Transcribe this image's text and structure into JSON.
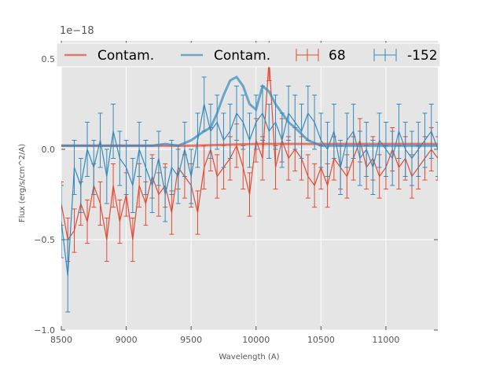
{
  "chart_data": {
    "type": "line",
    "title": "",
    "xlabel": "Wavelength (A)",
    "ylabel": "Flux (erg/s/cm^2/A)",
    "y_offset_label": "1e−18",
    "xlim": [
      8500,
      11400
    ],
    "ylim": [
      -1.0,
      0.6
    ],
    "xticks": [
      8500,
      9000,
      9500,
      10000,
      10500,
      11000
    ],
    "xtick_labels": [
      "8500",
      "9000",
      "9500",
      "10000",
      "10500",
      "11000"
    ],
    "yticks": [
      -1.0,
      -0.5,
      0.0,
      0.5
    ],
    "ytick_labels": [
      "−1.0",
      "−0.5",
      "0.0",
      "0.5"
    ],
    "grid": true,
    "legend_position": "top",
    "legend_entries": [
      {
        "label": "Contam.",
        "kind": "line",
        "color": "#e24a33"
      },
      {
        "label": "Contam.",
        "kind": "line",
        "color": "#348abd"
      },
      {
        "label": "68",
        "kind": "errorbar",
        "color": "#e24a33"
      },
      {
        "label": "-152",
        "kind": "errorbar",
        "color": "#348abd"
      }
    ],
    "series": [
      {
        "name": "68",
        "kind": "errorbar",
        "color": "#e24a33",
        "x": [
          8500,
          8550,
          8600,
          8650,
          8700,
          8750,
          8800,
          8850,
          8900,
          8950,
          9000,
          9050,
          9100,
          9150,
          9200,
          9250,
          9300,
          9350,
          9400,
          9450,
          9500,
          9550,
          9600,
          9650,
          9700,
          9750,
          9800,
          9850,
          9900,
          9950,
          10000,
          10050,
          10100,
          10150,
          10200,
          10250,
          10300,
          10350,
          10400,
          10450,
          10500,
          10550,
          10600,
          10650,
          10700,
          10750,
          10800,
          10850,
          10900,
          10950,
          11000,
          11050,
          11100,
          11150,
          11200,
          11250,
          11300,
          11350,
          11400
        ],
        "y": [
          -0.3,
          -0.5,
          -0.45,
          -0.3,
          -0.4,
          -0.2,
          -0.3,
          -0.5,
          -0.2,
          -0.4,
          -0.25,
          -0.5,
          -0.2,
          -0.3,
          -0.15,
          -0.25,
          -0.2,
          -0.35,
          -0.1,
          -0.15,
          -0.2,
          -0.35,
          -0.1,
          0.0,
          -0.15,
          -0.1,
          -0.05,
          0.02,
          -0.1,
          -0.25,
          0.05,
          -0.05,
          0.5,
          -0.1,
          0.05,
          -0.05,
          0.0,
          -0.05,
          -0.15,
          -0.2,
          -0.1,
          -0.2,
          -0.05,
          -0.1,
          -0.15,
          -0.05,
          0.05,
          -0.1,
          -0.05,
          -0.15,
          -0.1,
          0.0,
          -0.1,
          -0.05,
          -0.15,
          -0.1,
          -0.05,
          0.0,
          -0.05
        ],
        "err": [
          0.12,
          0.12,
          0.12,
          0.12,
          0.12,
          0.12,
          0.12,
          0.12,
          0.12,
          0.12,
          0.12,
          0.12,
          0.12,
          0.12,
          0.12,
          0.12,
          0.12,
          0.12,
          0.12,
          0.12,
          0.12,
          0.12,
          0.12,
          0.12,
          0.12,
          0.12,
          0.12,
          0.12,
          0.12,
          0.12,
          0.12,
          0.12,
          0.12,
          0.12,
          0.12,
          0.12,
          0.12,
          0.12,
          0.12,
          0.12,
          0.12,
          0.12,
          0.12,
          0.12,
          0.12,
          0.12,
          0.12,
          0.12,
          0.12,
          0.12,
          0.12,
          0.12,
          0.12,
          0.12,
          0.12,
          0.12,
          0.12,
          0.12,
          0.12
        ]
      },
      {
        "name": "-152",
        "kind": "errorbar",
        "color": "#348abd",
        "x": [
          8500,
          8550,
          8600,
          8650,
          8700,
          8750,
          8800,
          8850,
          8900,
          8950,
          9000,
          9050,
          9100,
          9150,
          9200,
          9250,
          9300,
          9350,
          9400,
          9450,
          9500,
          9550,
          9600,
          9650,
          9700,
          9750,
          9800,
          9850,
          9900,
          9950,
          10000,
          10050,
          10100,
          10150,
          10200,
          10250,
          10300,
          10350,
          10400,
          10450,
          10500,
          10550,
          10600,
          10650,
          10700,
          10750,
          10800,
          10850,
          10900,
          10950,
          11000,
          11050,
          11100,
          11150,
          11200,
          11250,
          11300,
          11350,
          11400
        ],
        "y": [
          -0.4,
          -0.7,
          -0.1,
          -0.2,
          0.0,
          -0.1,
          0.05,
          -0.15,
          0.1,
          -0.05,
          -0.1,
          -0.2,
          0.0,
          -0.1,
          -0.2,
          -0.05,
          -0.25,
          -0.1,
          -0.15,
          0.0,
          -0.15,
          0.05,
          0.25,
          0.1,
          0.15,
          0.05,
          0.1,
          0.2,
          0.15,
          0.05,
          0.15,
          0.2,
          0.1,
          0.15,
          0.05,
          0.2,
          0.15,
          0.1,
          0.2,
          0.15,
          0.05,
          0.0,
          0.1,
          -0.1,
          0.05,
          0.1,
          -0.05,
          0.0,
          -0.1,
          0.05,
          0.0,
          -0.05,
          0.1,
          0.0,
          -0.05,
          0.0,
          0.05,
          0.1,
          0.0
        ],
        "err": [
          0.2,
          0.2,
          0.15,
          0.15,
          0.15,
          0.15,
          0.15,
          0.15,
          0.15,
          0.15,
          0.15,
          0.15,
          0.15,
          0.15,
          0.15,
          0.15,
          0.15,
          0.15,
          0.15,
          0.15,
          0.15,
          0.15,
          0.15,
          0.15,
          0.15,
          0.15,
          0.15,
          0.15,
          0.15,
          0.15,
          0.15,
          0.15,
          0.15,
          0.15,
          0.15,
          0.15,
          0.15,
          0.15,
          0.15,
          0.15,
          0.15,
          0.15,
          0.15,
          0.15,
          0.15,
          0.15,
          0.15,
          0.15,
          0.15,
          0.15,
          0.15,
          0.15,
          0.15,
          0.15,
          0.15,
          0.15,
          0.15,
          0.15,
          0.15
        ]
      },
      {
        "name": "Contam.",
        "kind": "line",
        "color": "#e24a33",
        "x": [
          8500,
          9000,
          9500,
          10000,
          10500,
          11000,
          11400
        ],
        "y": [
          0.02,
          0.02,
          0.02,
          0.03,
          0.03,
          0.03,
          0.03
        ]
      },
      {
        "name": "Contam.",
        "kind": "line",
        "color": "#348abd",
        "x": [
          8500,
          9000,
          9200,
          9300,
          9400,
          9500,
          9600,
          9650,
          9700,
          9750,
          9800,
          9850,
          9900,
          9950,
          10000,
          10050,
          10100,
          10150,
          10200,
          10250,
          10300,
          10400,
          10500,
          11000,
          11400
        ],
        "y": [
          0.02,
          0.02,
          0.02,
          0.03,
          0.02,
          0.05,
          0.1,
          0.12,
          0.2,
          0.3,
          0.38,
          0.4,
          0.35,
          0.25,
          0.22,
          0.35,
          0.32,
          0.25,
          0.2,
          0.15,
          0.12,
          0.05,
          0.02,
          0.02,
          0.02
        ]
      }
    ]
  }
}
